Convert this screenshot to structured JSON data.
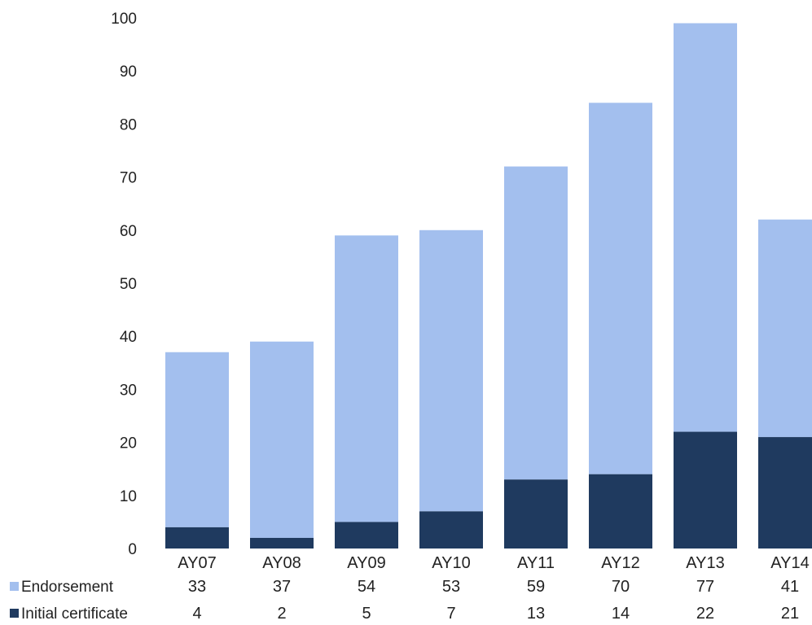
{
  "chart_data": {
    "type": "bar",
    "stacked": true,
    "title": "",
    "xlabel": "",
    "ylabel": "",
    "categories": [
      "AY07",
      "AY08",
      "AY09",
      "AY10",
      "AY11",
      "AY12",
      "AY13",
      "AY14"
    ],
    "series": [
      {
        "name": "Initial certificate",
        "color": "#1f3a5f",
        "values": [
          4,
          2,
          5,
          7,
          13,
          14,
          22,
          21
        ]
      },
      {
        "name": "Endorsement",
        "color": "#a3bfee",
        "values": [
          33,
          37,
          54,
          53,
          59,
          70,
          77,
          41
        ]
      }
    ],
    "ylim": [
      0,
      100
    ],
    "yticks": [
      0,
      10,
      20,
      30,
      40,
      50,
      60,
      70,
      80,
      90,
      100
    ],
    "grid": false,
    "legend": "data-table-below",
    "table_rows": [
      "Endorsement",
      "Initial certificate"
    ]
  }
}
